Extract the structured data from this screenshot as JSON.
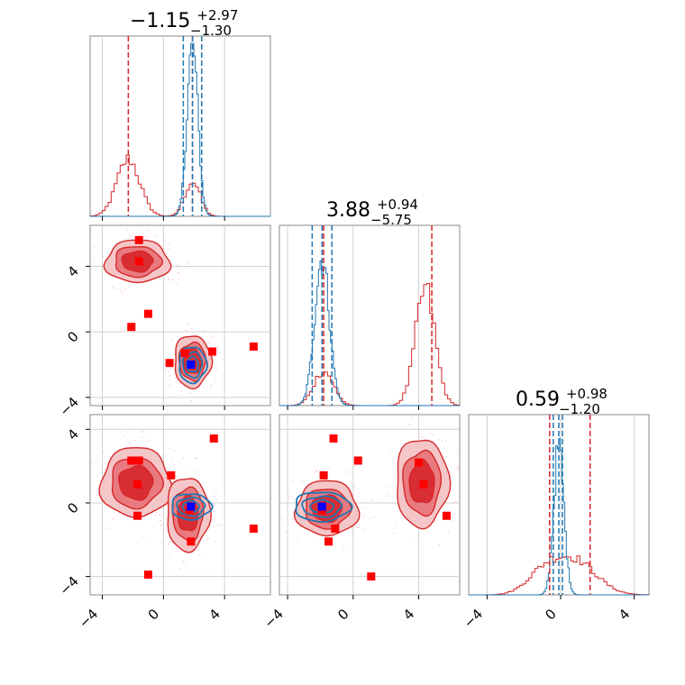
{
  "chart_data": {
    "type": "corner",
    "grid": true,
    "colors": {
      "red": "#d62728",
      "blue": "#1f77b4",
      "marker_red": "#ff0000",
      "marker_blue": "#0000ff"
    },
    "params": [
      {
        "title": {
          "main": "−1.15",
          "sup": "+2.97",
          "sub": "−1.30"
        },
        "range": [
          -4.8,
          7.0
        ],
        "ticks": [
          -4,
          0,
          4
        ],
        "tick_labels": [
          "−4",
          "0",
          "4"
        ]
      },
      {
        "title": {
          "main": "3.88",
          "sup": "+0.94",
          "sub": "−5.75"
        },
        "range": [
          -4.5,
          6.5
        ],
        "ticks": [
          -4,
          0,
          4
        ],
        "tick_labels": [
          "−4",
          "0",
          "4"
        ]
      },
      {
        "title": {
          "main": "0.59",
          "sup": "+0.98",
          "sub": "−1.20"
        },
        "range": [
          -5.0,
          4.8
        ],
        "ticks": [
          -4,
          0,
          4
        ],
        "tick_labels": [
          "−4",
          "0",
          "4"
        ]
      }
    ],
    "diagonal": [
      {
        "red_modes": [
          {
            "mu": -2.3,
            "sigma": 0.75,
            "amp": 0.33
          },
          {
            "mu": 1.9,
            "sigma": 0.5,
            "amp": 0.2
          }
        ],
        "blue_modes": [
          {
            "mu": 1.9,
            "sigma": 0.35,
            "amp": 1.0
          }
        ],
        "red_lines": [
          -2.3,
          1.9
        ],
        "blue_lines": [
          1.3,
          1.9,
          2.5
        ]
      },
      {
        "red_modes": [
          {
            "mu": -1.8,
            "sigma": 0.6,
            "amp": 0.2
          },
          {
            "mu": 4.4,
            "sigma": 0.6,
            "amp": 0.67
          }
        ],
        "blue_modes": [
          {
            "mu": -1.9,
            "sigma": 0.45,
            "amp": 0.85
          }
        ],
        "red_lines": [
          -1.8,
          4.8
        ],
        "blue_lines": [
          -2.5,
          -1.9,
          -1.3
        ]
      },
      {
        "red_modes": [
          {
            "mu": 0.7,
            "sigma": 1.2,
            "amp": 0.2
          },
          {
            "mu": -1.0,
            "sigma": 0.9,
            "amp": 0.1
          }
        ],
        "blue_modes": [
          {
            "mu": -0.1,
            "sigma": 0.28,
            "amp": 0.85
          }
        ],
        "red_lines": [
          -0.6,
          1.6
        ],
        "blue_lines": [
          -0.4,
          -0.1,
          0.1
        ]
      }
    ],
    "off_diagonal": [
      {
        "row": 1,
        "col": 0,
        "red_blobs": [
          {
            "x": -1.7,
            "y": 4.3,
            "rx": 2.1,
            "ry": 1.3
          },
          {
            "x": 1.9,
            "y": -1.8,
            "rx": 1.2,
            "ry": 1.6
          }
        ],
        "blue_blobs": [
          {
            "x": 1.9,
            "y": -2.0,
            "rx": 0.9,
            "ry": 1.1
          }
        ],
        "red_markers": [
          [
            -1.6,
            5.6
          ],
          [
            -1.6,
            4.3
          ],
          [
            -1.0,
            1.1
          ],
          [
            -2.1,
            0.3
          ],
          [
            3.2,
            -1.2
          ],
          [
            5.9,
            -0.9
          ],
          [
            1.4,
            -1.3
          ],
          [
            0.4,
            -1.9
          ]
        ],
        "blue_markers": [
          [
            1.8,
            -2.0
          ]
        ]
      },
      {
        "row": 2,
        "col": 0,
        "red_blobs": [
          {
            "x": -1.8,
            "y": 1.1,
            "rx": 2.3,
            "ry": 1.9
          },
          {
            "x": 1.6,
            "y": -0.6,
            "rx": 1.4,
            "ry": 2.0
          }
        ],
        "blue_blobs": [
          {
            "x": 1.8,
            "y": -0.2,
            "rx": 1.3,
            "ry": 0.7
          }
        ],
        "red_markers": [
          [
            -2.1,
            2.3
          ],
          [
            -1.6,
            2.3
          ],
          [
            -1.7,
            1.0
          ],
          [
            0.5,
            1.5
          ],
          [
            3.3,
            3.5
          ],
          [
            -1.7,
            -0.7
          ],
          [
            1.8,
            -2.1
          ],
          [
            5.9,
            -1.4
          ],
          [
            -1.0,
            -3.9
          ],
          [
            1.7,
            -0.4
          ]
        ],
        "blue_markers": [
          [
            1.8,
            -0.2
          ]
        ]
      },
      {
        "row": 2,
        "col": 1,
        "red_blobs": [
          {
            "x": -1.6,
            "y": -0.3,
            "rx": 1.9,
            "ry": 1.5
          },
          {
            "x": 4.2,
            "y": 1.1,
            "rx": 1.6,
            "ry": 2.4
          }
        ],
        "blue_blobs": [
          {
            "x": -1.9,
            "y": -0.2,
            "rx": 1.7,
            "ry": 0.8
          }
        ],
        "red_markers": [
          [
            -1.2,
            3.5
          ],
          [
            0.3,
            2.3
          ],
          [
            -1.8,
            1.5
          ],
          [
            4.0,
            2.2
          ],
          [
            4.3,
            1.0
          ],
          [
            5.7,
            -0.7
          ],
          [
            -1.1,
            -1.4
          ],
          [
            -1.5,
            -2.1
          ],
          [
            1.1,
            -4.0
          ],
          [
            -1.9,
            -0.4
          ]
        ],
        "blue_markers": [
          [
            -1.9,
            -0.2
          ]
        ]
      }
    ]
  }
}
